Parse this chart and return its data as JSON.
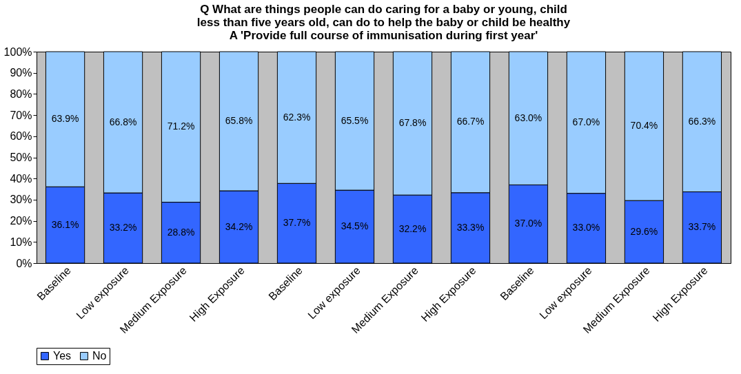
{
  "chart_data": {
    "type": "bar",
    "stacked": true,
    "title": "Q What are things people can do caring for a baby or young, child\nless than five years old, can do to help the baby or child be healthy\nA 'Provide full course of immunisation during first year'",
    "categories": [
      "Baseline",
      "Low exposure",
      "Medium Exposure",
      "High Exposure",
      "Baseline",
      "Low exposure",
      "Medium Exposure",
      "High Exposure",
      "Baseline",
      "Low exposure",
      "Medium Exposure",
      "High Exposure"
    ],
    "series": [
      {
        "name": "Yes",
        "color": "#3366ff",
        "values": [
          36.1,
          33.2,
          28.8,
          34.2,
          37.7,
          34.5,
          32.2,
          33.3,
          37.0,
          33.0,
          29.6,
          33.7
        ],
        "value_labels": [
          "36.1%",
          "33.2%",
          "28.8%",
          "34.2%",
          "37.7%",
          "34.5%",
          "32.2%",
          "33.3%",
          "37.0%",
          "33.0%",
          "29.6%",
          "33.7%"
        ]
      },
      {
        "name": "No",
        "color": "#99ccff",
        "values": [
          63.9,
          66.8,
          71.2,
          65.8,
          62.3,
          65.5,
          67.8,
          66.7,
          63.0,
          67.0,
          70.4,
          66.3
        ],
        "value_labels": [
          "63.9%",
          "66.8%",
          "71.2%",
          "65.8%",
          "62.3%",
          "65.5%",
          "67.8%",
          "66.7%",
          "63.0%",
          "67.0%",
          "70.4%",
          "66.3%"
        ]
      }
    ],
    "ylim": [
      0,
      100
    ],
    "yticks": [
      {
        "value": 0,
        "label": "0%"
      },
      {
        "value": 10,
        "label": "10%"
      },
      {
        "value": 20,
        "label": "20%"
      },
      {
        "value": 30,
        "label": "30%"
      },
      {
        "value": 40,
        "label": "40%"
      },
      {
        "value": 50,
        "label": "50%"
      },
      {
        "value": 60,
        "label": "60%"
      },
      {
        "value": 70,
        "label": "70%"
      },
      {
        "value": 80,
        "label": "80%"
      },
      {
        "value": 90,
        "label": "90%"
      },
      {
        "value": 100,
        "label": "100%"
      }
    ],
    "grid": false,
    "legend": "bottom"
  }
}
